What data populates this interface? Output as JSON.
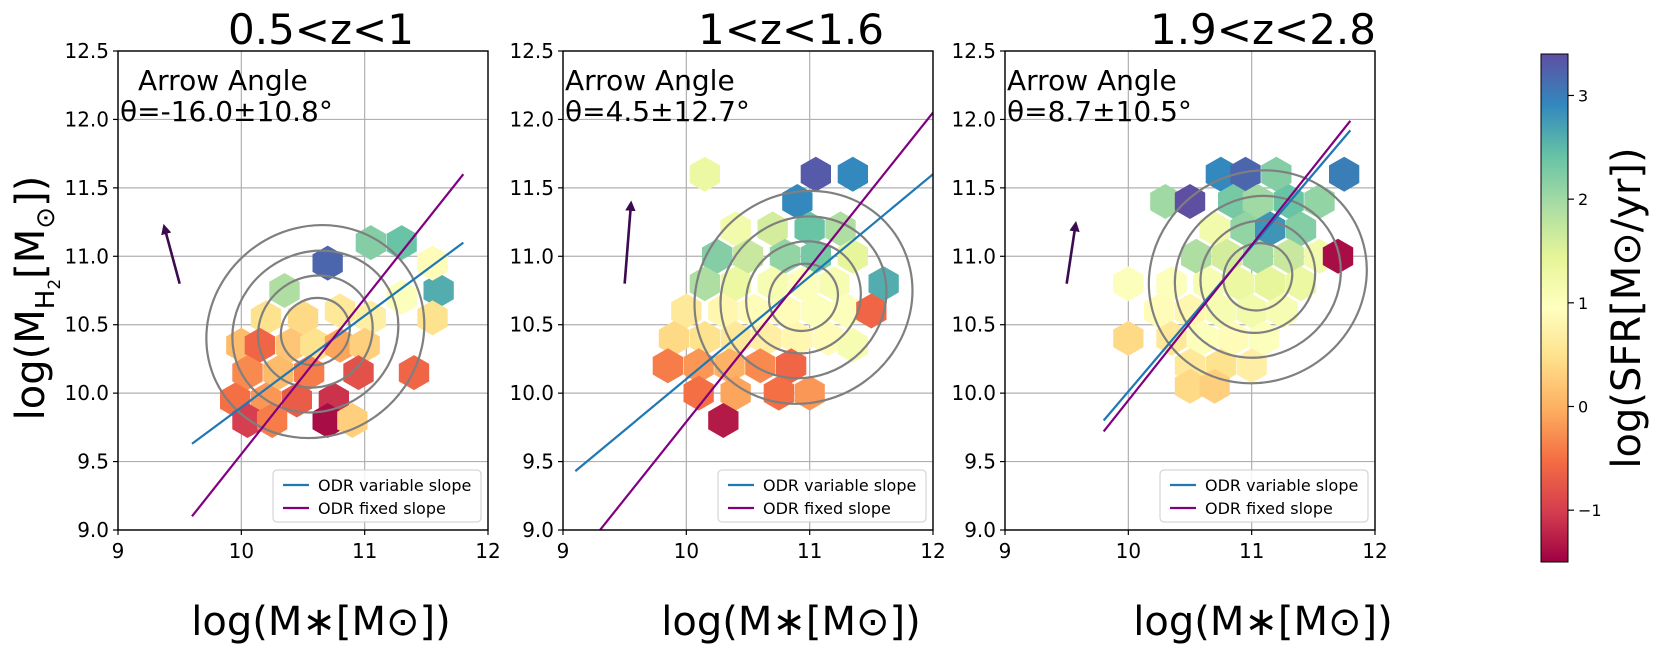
{
  "chart_data": [
    {
      "type": "scatter",
      "title": "0.5<z<1",
      "xlabel": "log(M∗[M⊙])",
      "ylabel": "log(M_H2[M⊙])",
      "xlim": [
        9,
        12
      ],
      "ylim": [
        9.0,
        12.5
      ],
      "xticks": [
        "9",
        "10",
        "11",
        "12"
      ],
      "yticks": [
        "9.0",
        "9.5",
        "10.0",
        "10.5",
        "11.0",
        "11.5",
        "12.0",
        "12.5"
      ],
      "grid": true,
      "annotation_title": "Arrow Angle",
      "annotation_theta": "θ=-16.0±10.8°",
      "arrow": {
        "x0": 9.5,
        "y0": 10.8,
        "x1": 9.38,
        "y1": 11.2
      },
      "legend_position": "lower-right",
      "series": [
        {
          "name": "ODR variable slope",
          "color": "#1f77b4",
          "x": [
            9.6,
            11.8
          ],
          "y": [
            9.63,
            11.1
          ]
        },
        {
          "name": "ODR fixed slope",
          "color": "#800080",
          "x": [
            9.6,
            11.8
          ],
          "y": [
            9.1,
            11.6
          ]
        }
      ],
      "hexbins": [
        {
          "x": 10.7,
          "y": 10.95,
          "sfr": 3.2
        },
        {
          "x": 11.05,
          "y": 11.1,
          "sfr": 2.2
        },
        {
          "x": 11.3,
          "y": 11.1,
          "sfr": 2.4
        },
        {
          "x": 10.35,
          "y": 10.75,
          "sfr": 1.9
        },
        {
          "x": 11.6,
          "y": 10.75,
          "sfr": 2.6
        },
        {
          "x": 11.55,
          "y": 10.95,
          "sfr": 0.9
        },
        {
          "x": 10.2,
          "y": 10.55,
          "sfr": 0.5
        },
        {
          "x": 10.5,
          "y": 10.55,
          "sfr": 0.4
        },
        {
          "x": 10.8,
          "y": 10.6,
          "sfr": 0.6
        },
        {
          "x": 11.05,
          "y": 10.55,
          "sfr": 0.7
        },
        {
          "x": 11.3,
          "y": 10.7,
          "sfr": 1.0
        },
        {
          "x": 11.55,
          "y": 10.55,
          "sfr": 0.5
        },
        {
          "x": 10.0,
          "y": 10.35,
          "sfr": 0.1
        },
        {
          "x": 10.15,
          "y": 10.35,
          "sfr": -0.6
        },
        {
          "x": 10.4,
          "y": 10.35,
          "sfr": 0.2
        },
        {
          "x": 10.6,
          "y": 10.35,
          "sfr": 0.5
        },
        {
          "x": 10.8,
          "y": 10.35,
          "sfr": -0.1
        },
        {
          "x": 11.0,
          "y": 10.35,
          "sfr": 0.3
        },
        {
          "x": 10.05,
          "y": 10.15,
          "sfr": -0.3
        },
        {
          "x": 10.3,
          "y": 10.15,
          "sfr": 0.1
        },
        {
          "x": 10.55,
          "y": 10.15,
          "sfr": -0.4
        },
        {
          "x": 10.95,
          "y": 10.15,
          "sfr": -0.8
        },
        {
          "x": 11.4,
          "y": 10.15,
          "sfr": -0.6
        },
        {
          "x": 9.95,
          "y": 9.95,
          "sfr": -0.5
        },
        {
          "x": 10.2,
          "y": 9.95,
          "sfr": -0.2
        },
        {
          "x": 10.45,
          "y": 9.95,
          "sfr": -0.7
        },
        {
          "x": 10.75,
          "y": 9.95,
          "sfr": -1.1
        },
        {
          "x": 10.05,
          "y": 9.8,
          "sfr": -1.0
        },
        {
          "x": 10.25,
          "y": 9.8,
          "sfr": -0.4
        },
        {
          "x": 10.7,
          "y": 9.8,
          "sfr": -1.4
        },
        {
          "x": 10.9,
          "y": 9.8,
          "sfr": 0.3
        }
      ]
    },
    {
      "type": "scatter",
      "title": "1<z<1.6",
      "xlabel": "log(M∗[M⊙])",
      "xlim": [
        9,
        12
      ],
      "ylim": [
        9.0,
        12.5
      ],
      "xticks": [
        "9",
        "10",
        "11",
        "12"
      ],
      "yticks": [
        "9.0",
        "9.5",
        "10.0",
        "10.5",
        "11.0",
        "11.5",
        "12.0",
        "12.5"
      ],
      "grid": true,
      "annotation_title": "Arrow Angle",
      "annotation_theta": "θ=4.5±12.7°",
      "arrow": {
        "x0": 9.5,
        "y0": 10.8,
        "x1": 9.55,
        "y1": 11.37
      },
      "legend_position": "lower-right",
      "series": [
        {
          "name": "ODR variable slope",
          "color": "#1f77b4",
          "x": [
            9.1,
            12.0
          ],
          "y": [
            9.43,
            11.6
          ]
        },
        {
          "name": "ODR fixed slope",
          "color": "#800080",
          "x": [
            9.3,
            12.0
          ],
          "y": [
            9.0,
            12.05
          ]
        }
      ],
      "hexbins": [
        {
          "x": 10.15,
          "y": 11.6,
          "sfr": 1.3
        },
        {
          "x": 11.05,
          "y": 11.6,
          "sfr": 3.3
        },
        {
          "x": 11.35,
          "y": 11.6,
          "sfr": 2.9
        },
        {
          "x": 10.9,
          "y": 11.4,
          "sfr": 2.9
        },
        {
          "x": 10.4,
          "y": 11.2,
          "sfr": 1.2
        },
        {
          "x": 10.7,
          "y": 11.2,
          "sfr": 1.6
        },
        {
          "x": 11.0,
          "y": 11.2,
          "sfr": 2.4
        },
        {
          "x": 11.25,
          "y": 11.2,
          "sfr": 1.9
        },
        {
          "x": 10.25,
          "y": 11.0,
          "sfr": 2.2
        },
        {
          "x": 10.5,
          "y": 11.0,
          "sfr": 1.7
        },
        {
          "x": 10.8,
          "y": 11.0,
          "sfr": 2.1
        },
        {
          "x": 11.05,
          "y": 11.0,
          "sfr": 2.3
        },
        {
          "x": 11.35,
          "y": 11.0,
          "sfr": 1.4
        },
        {
          "x": 11.6,
          "y": 10.8,
          "sfr": 2.6
        },
        {
          "x": 10.15,
          "y": 10.8,
          "sfr": 1.9
        },
        {
          "x": 10.4,
          "y": 10.8,
          "sfr": 1.3
        },
        {
          "x": 10.7,
          "y": 10.8,
          "sfr": 1.1
        },
        {
          "x": 10.95,
          "y": 10.8,
          "sfr": 1.0
        },
        {
          "x": 11.2,
          "y": 10.8,
          "sfr": 1.1
        },
        {
          "x": 10.0,
          "y": 10.6,
          "sfr": 0.6
        },
        {
          "x": 10.3,
          "y": 10.6,
          "sfr": 0.8
        },
        {
          "x": 10.55,
          "y": 10.6,
          "sfr": 0.9
        },
        {
          "x": 10.8,
          "y": 10.6,
          "sfr": 0.9
        },
        {
          "x": 11.05,
          "y": 10.6,
          "sfr": 1.0
        },
        {
          "x": 11.3,
          "y": 10.6,
          "sfr": 1.0
        },
        {
          "x": 11.5,
          "y": 10.6,
          "sfr": -0.6
        },
        {
          "x": 9.9,
          "y": 10.4,
          "sfr": 0.4
        },
        {
          "x": 10.15,
          "y": 10.4,
          "sfr": 0.5
        },
        {
          "x": 10.4,
          "y": 10.4,
          "sfr": 0.6
        },
        {
          "x": 10.65,
          "y": 10.4,
          "sfr": 0.7
        },
        {
          "x": 10.9,
          "y": 10.4,
          "sfr": 0.8
        },
        {
          "x": 11.15,
          "y": 10.4,
          "sfr": 0.9
        },
        {
          "x": 11.35,
          "y": 10.35,
          "sfr": 1.1
        },
        {
          "x": 9.85,
          "y": 10.2,
          "sfr": -0.4
        },
        {
          "x": 10.1,
          "y": 10.2,
          "sfr": -0.2
        },
        {
          "x": 10.35,
          "y": 10.2,
          "sfr": 0.0
        },
        {
          "x": 10.6,
          "y": 10.2,
          "sfr": -0.3
        },
        {
          "x": 10.85,
          "y": 10.2,
          "sfr": -0.6
        },
        {
          "x": 10.1,
          "y": 10.0,
          "sfr": -0.5
        },
        {
          "x": 10.4,
          "y": 10.0,
          "sfr": -0.1
        },
        {
          "x": 10.75,
          "y": 10.0,
          "sfr": -0.5
        },
        {
          "x": 11.0,
          "y": 10.0,
          "sfr": -0.2
        },
        {
          "x": 10.3,
          "y": 9.8,
          "sfr": -1.3
        }
      ]
    },
    {
      "type": "scatter",
      "title": "1.9<z<2.8",
      "xlabel": "log(M∗[M⊙])",
      "xlim": [
        9,
        12
      ],
      "ylim": [
        9.0,
        12.5
      ],
      "xticks": [
        "9",
        "10",
        "11",
        "12"
      ],
      "yticks": [
        "9.0",
        "9.5",
        "10.0",
        "10.5",
        "11.0",
        "11.5",
        "12.0",
        "12.5"
      ],
      "grid": true,
      "annotation_title": "Arrow Angle",
      "annotation_theta": "θ=8.7±10.5°",
      "arrow": {
        "x0": 9.5,
        "y0": 10.8,
        "x1": 9.57,
        "y1": 11.22
      },
      "legend_position": "lower-right",
      "series": [
        {
          "name": "ODR variable slope",
          "color": "#1f77b4",
          "x": [
            9.8,
            11.8
          ],
          "y": [
            9.8,
            11.92
          ]
        },
        {
          "name": "ODR fixed slope",
          "color": "#800080",
          "x": [
            9.8,
            11.8
          ],
          "y": [
            9.72,
            11.99
          ]
        }
      ],
      "hexbins": [
        {
          "x": 10.75,
          "y": 11.6,
          "sfr": 2.9
        },
        {
          "x": 10.95,
          "y": 11.6,
          "sfr": 3.2
        },
        {
          "x": 11.2,
          "y": 11.6,
          "sfr": 2.2
        },
        {
          "x": 11.75,
          "y": 11.6,
          "sfr": 3.0
        },
        {
          "x": 10.3,
          "y": 11.4,
          "sfr": 2.0
        },
        {
          "x": 10.5,
          "y": 11.4,
          "sfr": 3.4
        },
        {
          "x": 10.85,
          "y": 11.4,
          "sfr": 2.3
        },
        {
          "x": 11.05,
          "y": 11.4,
          "sfr": 2.0
        },
        {
          "x": 11.3,
          "y": 11.4,
          "sfr": 2.4
        },
        {
          "x": 11.55,
          "y": 11.4,
          "sfr": 2.1
        },
        {
          "x": 10.7,
          "y": 11.2,
          "sfr": 1.2
        },
        {
          "x": 10.95,
          "y": 11.2,
          "sfr": 2.1
        },
        {
          "x": 11.15,
          "y": 11.2,
          "sfr": 2.8
        },
        {
          "x": 11.4,
          "y": 11.2,
          "sfr": 2.2
        },
        {
          "x": 10.55,
          "y": 11.0,
          "sfr": 1.9
        },
        {
          "x": 10.8,
          "y": 11.0,
          "sfr": 1.6
        },
        {
          "x": 11.05,
          "y": 11.0,
          "sfr": 2.0
        },
        {
          "x": 11.3,
          "y": 11.0,
          "sfr": 1.7
        },
        {
          "x": 11.55,
          "y": 11.0,
          "sfr": 1.2
        },
        {
          "x": 11.7,
          "y": 11.0,
          "sfr": -1.4
        },
        {
          "x": 10.0,
          "y": 10.8,
          "sfr": 1.0
        },
        {
          "x": 10.35,
          "y": 10.8,
          "sfr": 1.0
        },
        {
          "x": 10.65,
          "y": 10.8,
          "sfr": 1.1
        },
        {
          "x": 10.9,
          "y": 10.8,
          "sfr": 1.3
        },
        {
          "x": 11.15,
          "y": 10.8,
          "sfr": 1.4
        },
        {
          "x": 11.4,
          "y": 10.8,
          "sfr": 1.3
        },
        {
          "x": 10.25,
          "y": 10.6,
          "sfr": 0.9
        },
        {
          "x": 10.5,
          "y": 10.6,
          "sfr": 0.8
        },
        {
          "x": 10.75,
          "y": 10.6,
          "sfr": 1.1
        },
        {
          "x": 11.0,
          "y": 10.6,
          "sfr": 1.2
        },
        {
          "x": 11.25,
          "y": 10.6,
          "sfr": 1.1
        },
        {
          "x": 10.0,
          "y": 10.4,
          "sfr": 0.4
        },
        {
          "x": 10.35,
          "y": 10.4,
          "sfr": 0.6
        },
        {
          "x": 10.6,
          "y": 10.4,
          "sfr": 1.0
        },
        {
          "x": 10.85,
          "y": 10.4,
          "sfr": 0.9
        },
        {
          "x": 11.1,
          "y": 10.4,
          "sfr": 1.0
        },
        {
          "x": 10.5,
          "y": 10.2,
          "sfr": 0.6
        },
        {
          "x": 10.75,
          "y": 10.2,
          "sfr": 0.5
        },
        {
          "x": 11.0,
          "y": 10.2,
          "sfr": 0.7
        },
        {
          "x": 10.5,
          "y": 10.05,
          "sfr": 0.4
        },
        {
          "x": 10.7,
          "y": 10.05,
          "sfr": 0.3
        }
      ]
    }
  ],
  "colorbar": {
    "label": "log(SFR[M⊙/yr])",
    "range": [
      -1.5,
      3.4
    ],
    "ticks": [
      {
        "value": -1,
        "label": "−1"
      },
      {
        "value": 0,
        "label": "0"
      },
      {
        "value": 1,
        "label": "1"
      },
      {
        "value": 2,
        "label": "2"
      },
      {
        "value": 3,
        "label": "3"
      }
    ],
    "cmap": "Spectral"
  }
}
